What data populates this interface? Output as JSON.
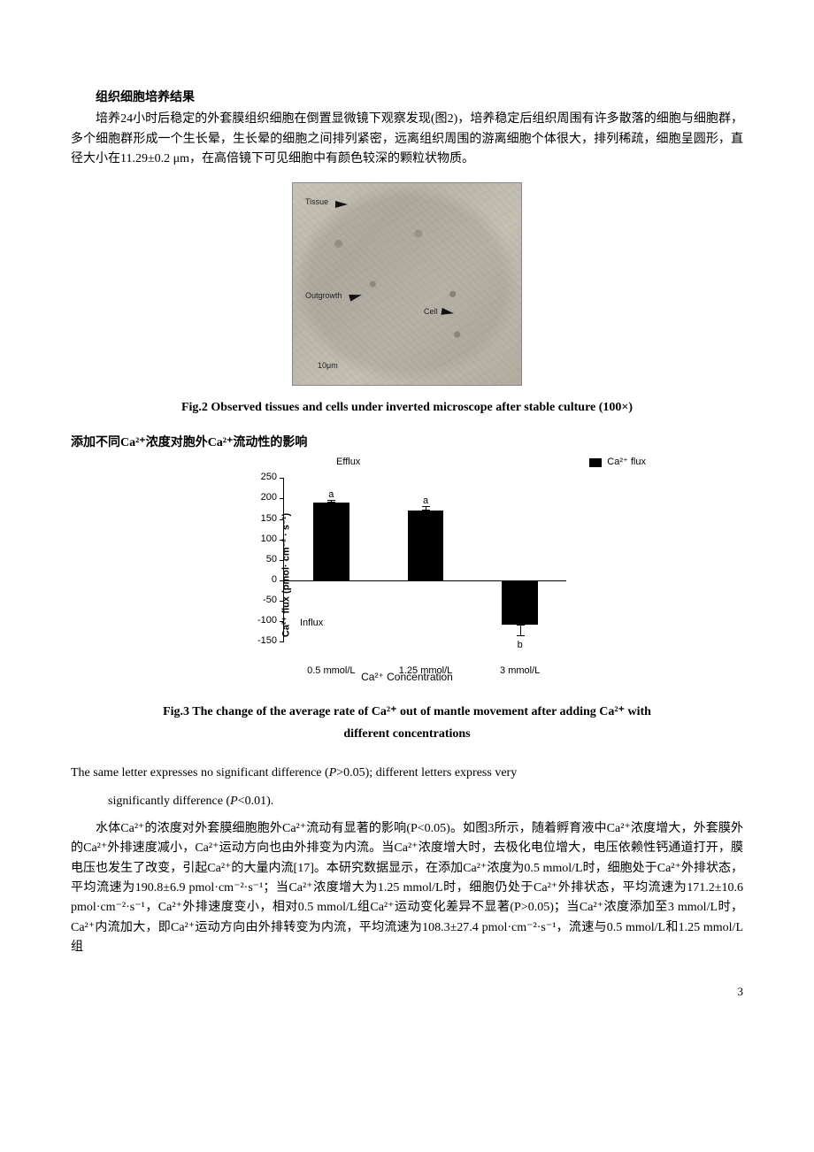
{
  "section1": {
    "heading": "组织细胞培养结果",
    "para": "培养24小时后稳定的外套膜组织细胞在倒置显微镜下观察发现(图2)，培养稳定后组织周围有许多散落的细胞与细胞群，多个细胞群形成一个生长晕，生长晕的细胞之间排列紧密，远离组织周围的游离细胞个体很大，排列稀疏，细胞呈圆形，直径大小在11.29±0.2 μm，在高倍镜下可见细胞中有颜色较深的颗粒状物质。"
  },
  "fig2": {
    "labels": {
      "tissue": "Tissue",
      "outgrowth": "Outgrowth",
      "cell": "Cell",
      "scale": "10μm"
    },
    "caption": "Fig.2 Observed tissues and cells under inverted microscope after stable culture (100×)"
  },
  "section2": {
    "heading": "添加不同Ca²⁺浓度对胞外Ca²⁺流动性的影响"
  },
  "chart": {
    "type": "bar",
    "title_top": "Efflux",
    "influx_label": "Influx",
    "legend": "Ca²⁺  flux",
    "ylabel": "Ca²⁺ flux (pmol· cm⁻² · s⁻¹)",
    "xlabel": "Ca²⁺ Concentration",
    "ylim": [
      -150,
      250
    ],
    "ytick_step": 50,
    "yticks": [
      -150,
      -100,
      -50,
      0,
      50,
      100,
      150,
      200,
      250
    ],
    "categories": [
      "0.5 mmol/L",
      "1.25 mmol/L",
      "3 mmol/L"
    ],
    "values": [
      190.8,
      171.2,
      -108.3
    ],
    "errors": [
      6.9,
      10.6,
      27.4
    ],
    "sig_letters": [
      "a",
      "a",
      "b"
    ],
    "bar_color": "#000000",
    "background_color": "#ffffff",
    "axis_color": "#000000",
    "label_fontsize": 11,
    "bar_width": 0.38
  },
  "fig3": {
    "caption_line1": "Fig.3 The change of the average rate of Ca²⁺ out of mantle movement after adding Ca²⁺ with",
    "caption_line2": "different concentrations",
    "note_line1_a": "The same letter expresses no significant difference (",
    "note_line1_p": "P",
    "note_line1_b": ">0.05); different letters express very",
    "note_line2_a": "significantly difference (",
    "note_line2_p": "P",
    "note_line2_b": "<0.01)."
  },
  "para2": "水体Ca²⁺的浓度对外套膜细胞胞外Ca²⁺流动有显著的影响(P<0.05)。如图3所示，随着孵育液中Ca²⁺浓度增大，外套膜外的Ca²⁺外排速度减小，Ca²⁺运动方向也由外排变为内流。当Ca²⁺浓度增大时，去极化电位增大，电压依赖性钙通道打开，膜电压也发生了改变，引起Ca²⁺的大量内流[17]。本研究数据显示，在添加Ca²⁺浓度为0.5 mmol/L时，细胞处于Ca²⁺外排状态，平均流速为190.8±6.9 pmol·cm⁻²·s⁻¹；当Ca²⁺浓度增大为1.25 mmol/L时，细胞仍处于Ca²⁺外排状态，平均流速为171.2±10.6 pmol·cm⁻²·s⁻¹，Ca²⁺外排速度变小，相对0.5 mmol/L组Ca²⁺运动变化差异不显著(P>0.05)；当Ca²⁺浓度添加至3 mmol/L时，Ca²⁺内流加大，即Ca²⁺运动方向由外排转变为内流，平均流速为108.3±27.4 pmol·cm⁻²·s⁻¹，流速与0.5 mmol/L和1.25 mmol/L组",
  "pagenum": "3"
}
